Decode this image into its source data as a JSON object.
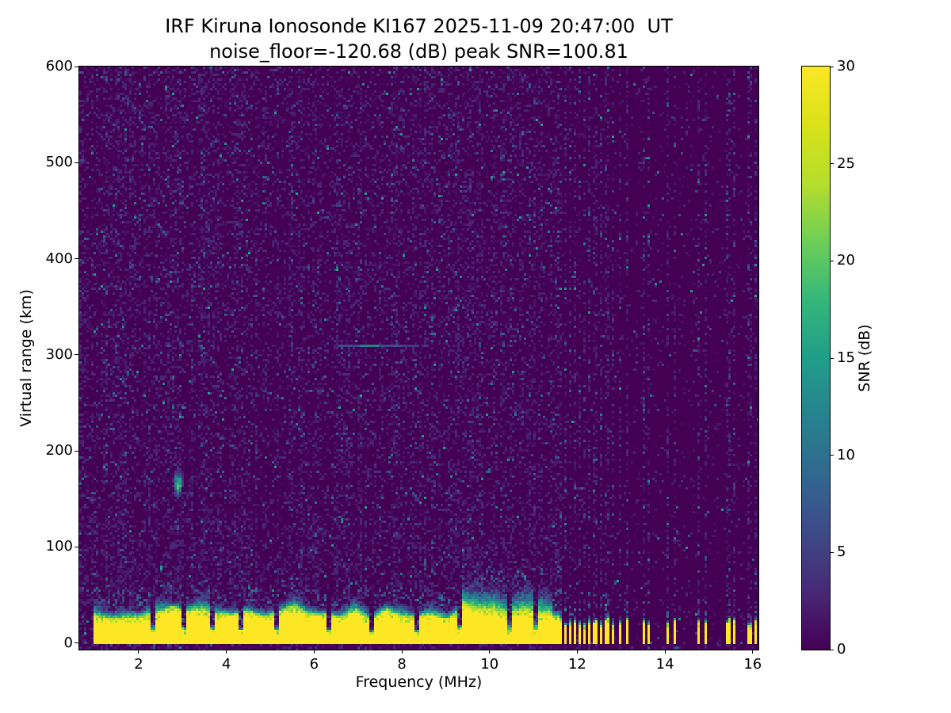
{
  "chart_data": {
    "type": "heatmap",
    "title": "IRF Kiruna Ionosonde KI167 2025-11-09 20:47:00  UT",
    "subtitle": "noise_floor=-120.68 (dB) peak SNR=100.81",
    "xlabel": "Frequency (MHz)",
    "ylabel": "Virtual range (km)",
    "xlim": [
      0.645,
      16.13
    ],
    "ylim": [
      -7,
      600
    ],
    "xticks": [
      2,
      4,
      6,
      8,
      10,
      12,
      14,
      16
    ],
    "yticks": [
      0,
      100,
      200,
      300,
      400,
      500,
      600
    ],
    "colorbar": {
      "label": "SNR (dB)",
      "min": 0,
      "max": 30,
      "ticks": [
        0,
        5,
        10,
        15,
        20,
        25,
        30
      ],
      "colormap": "viridis"
    },
    "colorbar_stops": [
      [
        0.0,
        "#440154"
      ],
      [
        0.1,
        "#482878"
      ],
      [
        0.2,
        "#3e4989"
      ],
      [
        0.3,
        "#31688e"
      ],
      [
        0.4,
        "#26828e"
      ],
      [
        0.5,
        "#1f9e89"
      ],
      [
        0.6,
        "#35b779"
      ],
      [
        0.7,
        "#6ece58"
      ],
      [
        0.8,
        "#b5de2b"
      ],
      [
        0.9,
        "#d8e219"
      ],
      [
        1.0,
        "#fde725"
      ]
    ],
    "features": {
      "seed": 167,
      "noise_floor_db": -120.68,
      "peak_snr_db": 100.81,
      "background_snr_db": 0,
      "ground_band": {
        "freq_min": 0.95,
        "continuous_freq_max": 11.62,
        "yellow_top_km_range": [
          23,
          39
        ],
        "fringe_top_km_range": [
          33,
          74
        ],
        "snr_db": 30,
        "notch_freqs": [
          2.3,
          3.05,
          3.7,
          4.35,
          5.15,
          6.35,
          7.3,
          8.35,
          9.3,
          10.45,
          11.05
        ]
      },
      "enhanced_fringe_freq_range": [
        9.35,
        11.45
      ],
      "stripe_freqs": [
        11.63,
        11.72,
        11.82,
        11.93,
        12.04,
        12.16,
        12.28,
        12.41,
        12.54,
        12.68,
        12.82,
        12.97,
        13.12,
        13.5,
        13.62,
        14.08,
        14.22,
        14.78,
        14.92,
        15.44,
        15.57,
        15.93,
        16.06
      ],
      "echo_blob": {
        "freq": 2.9,
        "range_km": 166
      },
      "horizontal_streak": {
        "freq_range": [
          6.5,
          8.6
        ],
        "range_km": 310
      }
    }
  }
}
